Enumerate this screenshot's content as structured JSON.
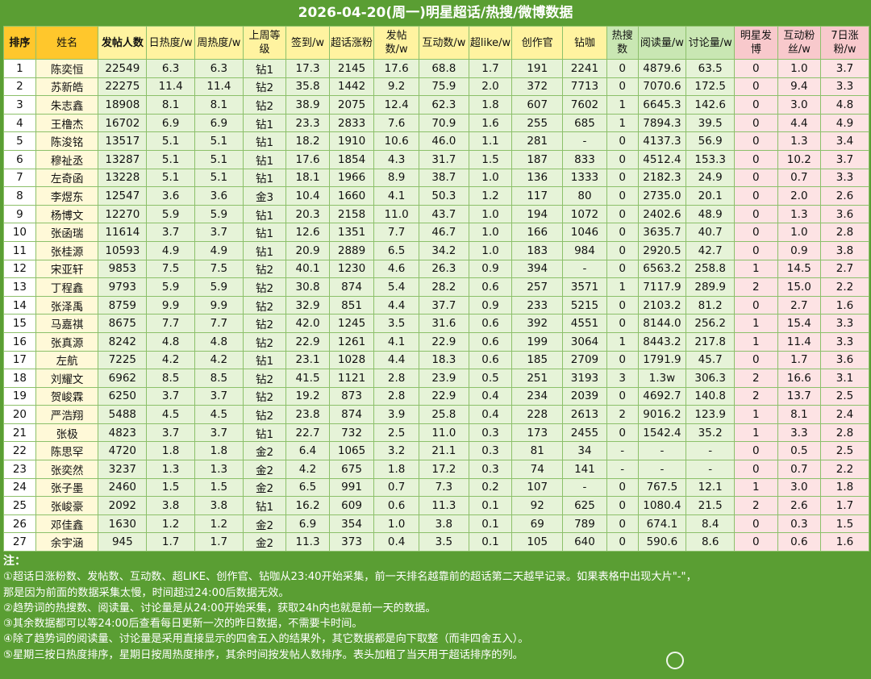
{
  "title": "2026-04-20(周一)明星超话/热搜/微博数据",
  "headers": [
    {
      "label": "排序",
      "bg": "yellow",
      "bold": true
    },
    {
      "label": "姓名",
      "bg": "yellow",
      "bold": false
    },
    {
      "label": "发帖人数",
      "bg": "lemon",
      "bold": true
    },
    {
      "label": "日热度/w",
      "bg": "lemon",
      "bold": false
    },
    {
      "label": "周热度/w",
      "bg": "lemon",
      "bold": false
    },
    {
      "label": "上周等级",
      "bg": "lemon",
      "bold": false
    },
    {
      "label": "签到/w",
      "bg": "lemon",
      "bold": false
    },
    {
      "label": "超话涨粉",
      "bg": "lemon",
      "bold": false
    },
    {
      "label": "发帖数/w",
      "bg": "lemon",
      "bold": false
    },
    {
      "label": "互动数/w",
      "bg": "lemon",
      "bold": false
    },
    {
      "label": "超like/w",
      "bg": "lemon",
      "bold": false
    },
    {
      "label": "创作官",
      "bg": "lemon",
      "bold": false
    },
    {
      "label": "钻咖",
      "bg": "lemon",
      "bold": false
    },
    {
      "label": "热搜数",
      "bg": "green",
      "bold": false
    },
    {
      "label": "阅读量/w",
      "bg": "green",
      "bold": false
    },
    {
      "label": "讨论量/w",
      "bg": "green",
      "bold": false
    },
    {
      "label": "明星发博",
      "bg": "pink",
      "bold": false
    },
    {
      "label": "互动粉丝/w",
      "bg": "pink",
      "bold": false
    },
    {
      "label": "7日涨粉/w",
      "bg": "pink",
      "bold": false
    }
  ],
  "rows": [
    [
      "1",
      "陈奕恒",
      "22549",
      "6.3",
      "6.3",
      "钻1",
      "17.3",
      "2145",
      "17.6",
      "68.8",
      "1.7",
      "191",
      "2241",
      "0",
      "4879.6",
      "63.5",
      "0",
      "1.0",
      "3.7"
    ],
    [
      "2",
      "苏新皓",
      "22275",
      "11.4",
      "11.4",
      "钻2",
      "35.8",
      "1442",
      "9.2",
      "75.9",
      "2.0",
      "372",
      "7713",
      "0",
      "7070.6",
      "172.5",
      "0",
      "9.4",
      "3.3"
    ],
    [
      "3",
      "朱志鑫",
      "18908",
      "8.1",
      "8.1",
      "钻2",
      "38.9",
      "2075",
      "12.4",
      "62.3",
      "1.8",
      "607",
      "7602",
      "1",
      "6645.3",
      "142.6",
      "0",
      "3.0",
      "4.8"
    ],
    [
      "4",
      "王橹杰",
      "16702",
      "6.9",
      "6.9",
      "钻1",
      "23.3",
      "2833",
      "7.6",
      "70.9",
      "1.6",
      "255",
      "685",
      "1",
      "7894.3",
      "39.5",
      "0",
      "4.4",
      "4.9"
    ],
    [
      "5",
      "陈浚铭",
      "13517",
      "5.1",
      "5.1",
      "钻1",
      "18.2",
      "1910",
      "10.6",
      "46.0",
      "1.1",
      "281",
      "-",
      "0",
      "4137.3",
      "56.9",
      "0",
      "1.3",
      "3.4"
    ],
    [
      "6",
      "穆祉丞",
      "13287",
      "5.1",
      "5.1",
      "钻1",
      "17.6",
      "1854",
      "4.3",
      "31.7",
      "1.5",
      "187",
      "833",
      "0",
      "4512.4",
      "153.3",
      "0",
      "10.2",
      "3.7"
    ],
    [
      "7",
      "左奇函",
      "13228",
      "5.1",
      "5.1",
      "钻1",
      "18.1",
      "1966",
      "8.9",
      "38.7",
      "1.0",
      "136",
      "1333",
      "0",
      "2182.3",
      "24.9",
      "0",
      "0.7",
      "3.3"
    ],
    [
      "8",
      "李煜东",
      "12547",
      "3.6",
      "3.6",
      "金3",
      "10.4",
      "1660",
      "4.1",
      "50.3",
      "1.2",
      "117",
      "80",
      "0",
      "2735.0",
      "20.1",
      "0",
      "2.0",
      "2.6"
    ],
    [
      "9",
      "杨博文",
      "12270",
      "5.9",
      "5.9",
      "钻1",
      "20.3",
      "2158",
      "11.0",
      "43.7",
      "1.0",
      "194",
      "1072",
      "0",
      "2402.6",
      "48.9",
      "0",
      "1.3",
      "3.6"
    ],
    [
      "10",
      "张函瑞",
      "11614",
      "3.7",
      "3.7",
      "钻1",
      "12.6",
      "1351",
      "7.7",
      "46.7",
      "1.0",
      "166",
      "1046",
      "0",
      "3635.7",
      "40.7",
      "0",
      "1.0",
      "2.8"
    ],
    [
      "11",
      "张桂源",
      "10593",
      "4.9",
      "4.9",
      "钻1",
      "20.9",
      "2889",
      "6.5",
      "34.2",
      "1.0",
      "183",
      "984",
      "0",
      "2920.5",
      "42.7",
      "0",
      "0.9",
      "3.8"
    ],
    [
      "12",
      "宋亚轩",
      "9853",
      "7.5",
      "7.5",
      "钻2",
      "40.1",
      "1230",
      "4.6",
      "26.3",
      "0.9",
      "394",
      "-",
      "0",
      "6563.2",
      "258.8",
      "1",
      "14.5",
      "2.7"
    ],
    [
      "13",
      "丁程鑫",
      "9793",
      "5.9",
      "5.9",
      "钻2",
      "30.8",
      "874",
      "5.4",
      "28.2",
      "0.6",
      "257",
      "3571",
      "1",
      "7117.9",
      "289.9",
      "2",
      "15.0",
      "2.2"
    ],
    [
      "14",
      "张泽禹",
      "8759",
      "9.9",
      "9.9",
      "钻2",
      "32.9",
      "851",
      "4.4",
      "37.7",
      "0.9",
      "233",
      "5215",
      "0",
      "2103.2",
      "81.2",
      "0",
      "2.7",
      "1.6"
    ],
    [
      "15",
      "马嘉祺",
      "8675",
      "7.7",
      "7.7",
      "钻2",
      "42.0",
      "1245",
      "3.5",
      "31.6",
      "0.6",
      "392",
      "4551",
      "0",
      "8144.0",
      "256.2",
      "1",
      "15.4",
      "3.3"
    ],
    [
      "16",
      "张真源",
      "8242",
      "4.8",
      "4.8",
      "钻2",
      "22.9",
      "1261",
      "4.1",
      "22.9",
      "0.6",
      "199",
      "3064",
      "1",
      "8443.2",
      "217.8",
      "1",
      "11.4",
      "3.3"
    ],
    [
      "17",
      "左航",
      "7225",
      "4.2",
      "4.2",
      "钻1",
      "23.1",
      "1028",
      "4.4",
      "18.3",
      "0.6",
      "185",
      "2709",
      "0",
      "1791.9",
      "45.7",
      "0",
      "1.7",
      "3.6"
    ],
    [
      "18",
      "刘耀文",
      "6962",
      "8.5",
      "8.5",
      "钻2",
      "41.5",
      "1121",
      "2.8",
      "23.9",
      "0.5",
      "251",
      "3193",
      "3",
      "1.3w",
      "306.3",
      "2",
      "16.6",
      "3.1"
    ],
    [
      "19",
      "贺峻霖",
      "6250",
      "3.7",
      "3.7",
      "钻2",
      "19.2",
      "873",
      "2.8",
      "22.9",
      "0.4",
      "234",
      "2039",
      "0",
      "4692.7",
      "140.8",
      "2",
      "13.7",
      "2.5"
    ],
    [
      "20",
      "严浩翔",
      "5488",
      "4.5",
      "4.5",
      "钻2",
      "23.8",
      "874",
      "3.9",
      "25.8",
      "0.4",
      "228",
      "2613",
      "2",
      "9016.2",
      "123.9",
      "1",
      "8.1",
      "2.4"
    ],
    [
      "21",
      "张极",
      "4823",
      "3.7",
      "3.7",
      "钻1",
      "22.7",
      "732",
      "2.5",
      "11.0",
      "0.3",
      "173",
      "2455",
      "0",
      "1542.4",
      "35.2",
      "1",
      "3.3",
      "2.8"
    ],
    [
      "22",
      "陈思罕",
      "4720",
      "1.8",
      "1.8",
      "金2",
      "6.4",
      "1065",
      "3.2",
      "21.1",
      "0.3",
      "81",
      "34",
      "-",
      "-",
      "-",
      "0",
      "0.5",
      "2.5"
    ],
    [
      "23",
      "张奕然",
      "3237",
      "1.3",
      "1.3",
      "金2",
      "4.2",
      "675",
      "1.8",
      "17.2",
      "0.3",
      "74",
      "141",
      "-",
      "-",
      "-",
      "0",
      "0.7",
      "2.2"
    ],
    [
      "24",
      "张子墨",
      "2460",
      "1.5",
      "1.5",
      "金2",
      "6.5",
      "991",
      "0.7",
      "7.3",
      "0.2",
      "107",
      "-",
      "0",
      "767.5",
      "12.1",
      "1",
      "3.0",
      "1.8"
    ],
    [
      "25",
      "张峻豪",
      "2092",
      "3.8",
      "3.8",
      "钻1",
      "16.2",
      "609",
      "0.6",
      "11.3",
      "0.1",
      "92",
      "625",
      "0",
      "1080.4",
      "21.5",
      "2",
      "2.6",
      "1.7"
    ],
    [
      "26",
      "邓佳鑫",
      "1630",
      "1.2",
      "1.2",
      "金2",
      "6.9",
      "354",
      "1.0",
      "3.8",
      "0.1",
      "69",
      "789",
      "0",
      "674.1",
      "8.4",
      "0",
      "0.3",
      "1.5"
    ],
    [
      "27",
      "余宇涵",
      "945",
      "1.7",
      "1.7",
      "金2",
      "11.3",
      "373",
      "0.4",
      "3.5",
      "0.1",
      "105",
      "640",
      "0",
      "590.6",
      "8.6",
      "0",
      "0.6",
      "1.6"
    ]
  ],
  "colored_cells": {
    "blue": [
      [
        0,
        2
      ],
      [
        0,
        6
      ],
      [
        1,
        2
      ],
      [
        2,
        2
      ],
      [
        3,
        2
      ],
      [
        3,
        6
      ],
      [
        4,
        2
      ],
      [
        5,
        6
      ],
      [
        6,
        2
      ],
      [
        6,
        6
      ],
      [
        7,
        2
      ],
      [
        7,
        6
      ],
      [
        7,
        14
      ],
      [
        8,
        2
      ],
      [
        8,
        6
      ],
      [
        9,
        2
      ],
      [
        9,
        3
      ],
      [
        9,
        6
      ],
      [
        10,
        2
      ],
      [
        10,
        6
      ],
      [
        11,
        6
      ],
      [
        14,
        3
      ],
      [
        14,
        6
      ],
      [
        14,
        14
      ],
      [
        15,
        6
      ],
      [
        16,
        6
      ],
      [
        17,
        6
      ],
      [
        18,
        6
      ],
      [
        18,
        14
      ],
      [
        19,
        6
      ],
      [
        20,
        6
      ],
      [
        21,
        2
      ],
      [
        21,
        6
      ],
      [
        22,
        2
      ],
      [
        23,
        6
      ],
      [
        25,
        2
      ],
      [
        26,
        2
      ],
      [
        26,
        14
      ]
    ],
    "red": [
      [
        1,
        3
      ],
      [
        1,
        6
      ],
      [
        1,
        14
      ],
      [
        2,
        6
      ],
      [
        2,
        14
      ],
      [
        3,
        14
      ],
      [
        6,
        14
      ],
      [
        9,
        14
      ],
      [
        12,
        6
      ],
      [
        12,
        15
      ],
      [
        13,
        3
      ],
      [
        14,
        15
      ],
      [
        17,
        14
      ],
      [
        19,
        14
      ],
      [
        24,
        15
      ]
    ]
  },
  "notes": {
    "heading": "注：",
    "lines": [
      "①超话日涨粉数、发帖数、互动数、超LIKE、创作官、钻咖从23:40开始采集，前一天排名越靠前的超话第二天越早记录。如果表格中出现大片\"-\"，",
      "那是因为前面的数据采集太慢，时间超过24:00后数据无效。",
      "②趋势词的热搜数、阅读量、讨论量是从24:00开始采集，获取24h内也就是前一天的数据。",
      "③其余数据都可以等24:00后查看每日更新一次的昨日数据，不需要卡时间。",
      "④除了趋势词的阅读量、讨论量是采用直接显示的四舍五入的结果外，其它数据都是向下取整（而非四舍五入）。",
      "⑤星期三按日热度排序，星期日按周热度排序，其余时间按发帖人数排序。表头加粗了当天用于超话排序的列。"
    ]
  },
  "colors": {
    "background": "#5a9e33",
    "header_yellow": "#ffc72c",
    "header_lemon": "#fff3a0",
    "header_green": "#c9e7b3",
    "header_pink": "#f8c9cc",
    "cell_green": "#e6f3d8",
    "cell_pink": "#fde3e4",
    "text_blue": "#1a4cb0",
    "text_red": "#c0272d"
  }
}
